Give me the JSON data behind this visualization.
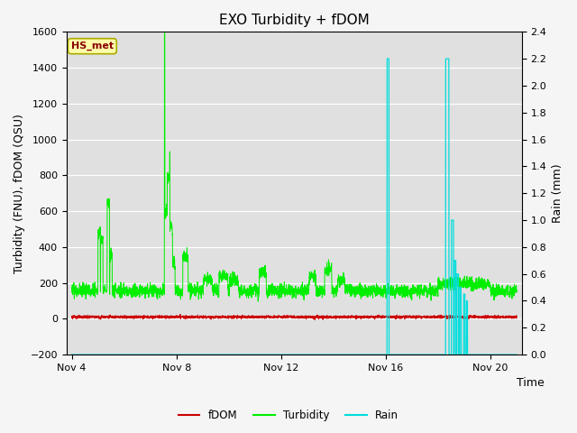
{
  "title": "EXO Turbidity + fDOM",
  "ylabel_left": "Turbidity (FNU), fDOM (QSU)",
  "ylabel_right": "Rain (mm)",
  "xlabel": "Time",
  "ylim_left": [
    -200,
    1600
  ],
  "ylim_right": [
    0.0,
    2.4
  ],
  "yticks_left": [
    -200,
    0,
    200,
    400,
    600,
    800,
    1000,
    1200,
    1400,
    1600
  ],
  "yticks_right": [
    0.0,
    0.2,
    0.4,
    0.6,
    0.8,
    1.0,
    1.2,
    1.4,
    1.6,
    1.8,
    2.0,
    2.2,
    2.4
  ],
  "xtick_labels": [
    "Nov 4",
    "Nov 8",
    "Nov 12",
    "Nov 16",
    "Nov 20"
  ],
  "xtick_positions": [
    4,
    8,
    12,
    16,
    20
  ],
  "xlim": [
    3.8,
    21.2
  ],
  "bg_color": "#e0e0e0",
  "fig_color": "#f5f5f5",
  "turbidity_color": "#00ee00",
  "fdom_color": "#cc0000",
  "rain_color": "#00dddd",
  "label_box_fill": "#ffffaa",
  "label_box_edge": "#aaaa00",
  "label_box_text": "HS_met",
  "label_box_text_color": "#880000",
  "legend_labels": [
    "fDOM",
    "Turbidity",
    "Rain"
  ],
  "legend_colors": [
    "#cc0000",
    "#00ee00",
    "#00dddd"
  ],
  "title_fontsize": 11,
  "axis_fontsize": 9,
  "tick_fontsize": 8,
  "lw_turb": 0.7,
  "lw_fdom": 0.8,
  "lw_rain": 0.9
}
